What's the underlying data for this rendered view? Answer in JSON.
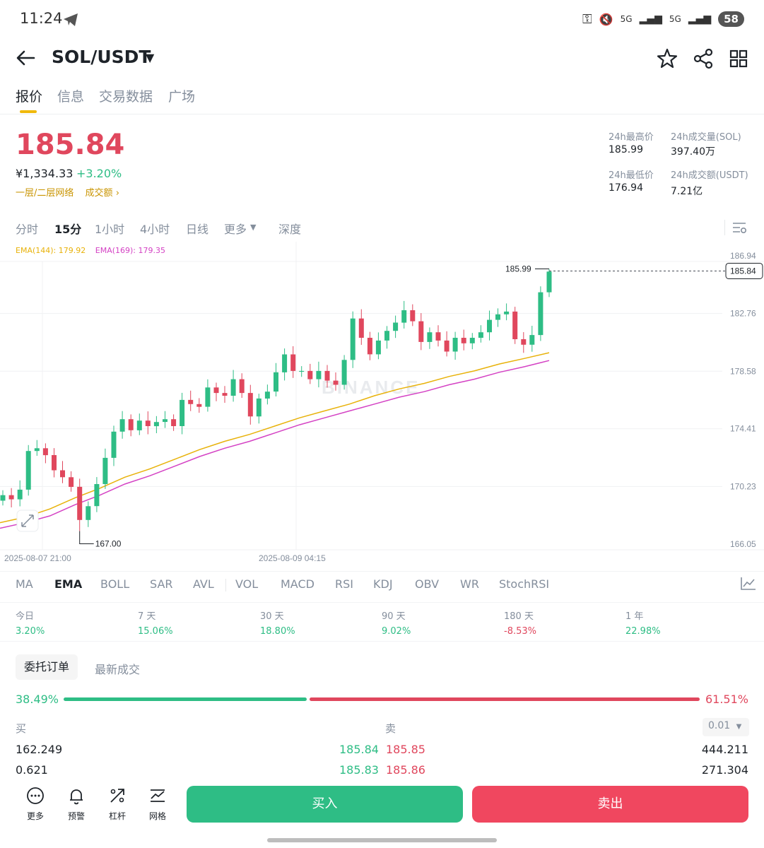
{
  "status": {
    "time": "11:24",
    "network": "5G",
    "battery": "58"
  },
  "header": {
    "pair": "SOL/USDT"
  },
  "tabs": [
    "报价",
    "信息",
    "交易数据",
    "广场"
  ],
  "price": {
    "last": "185.84",
    "cny": "¥1,334.33",
    "change": "+3.20%",
    "tag1": "一层/二层网络",
    "tag2": "成交额"
  },
  "stats": {
    "high_label": "24h最高价",
    "high": "185.99",
    "vol_label": "24h成交量(SOL)",
    "vol": "397.40万",
    "low_label": "24h最低价",
    "low": "176.94",
    "turnover_label": "24h成交额(USDT)",
    "turnover": "7.21亿"
  },
  "intervals": [
    "分时",
    "15分",
    "1小时",
    "4小时",
    "日线",
    "更多",
    "深度"
  ],
  "ema": {
    "ema144": "EMA(144): 179.92",
    "ema169": "EMA(169): 179.35",
    "color144": "#e8b20a",
    "color169": "#d442c4"
  },
  "chart_data": {
    "type": "candlestick",
    "y_ticks": [
      "186.94",
      "182.76",
      "178.58",
      "174.41",
      "170.23",
      "166.05"
    ],
    "x_ticks": [
      "2025-08-07 21:00",
      "2025-08-09 04:15"
    ],
    "current_price": "185.84",
    "max_marker": "185.99",
    "min_marker": "167.00",
    "watermark": "BINANCE",
    "closes": [
      169.6,
      169.3,
      170.0,
      172.8,
      173.0,
      172.5,
      171.4,
      170.9,
      170.2,
      167.8,
      168.8,
      170.4,
      172.3,
      174.2,
      175.1,
      174.3,
      175.0,
      174.6,
      174.9,
      175.1,
      174.6,
      176.5,
      176.2,
      176.0,
      177.4,
      177.0,
      176.8,
      178.0,
      177.0,
      175.3,
      176.6,
      177.1,
      178.5,
      179.8,
      178.6,
      178.6,
      178.0,
      178.6,
      177.9,
      177.6,
      179.4,
      182.4,
      181.0,
      179.8,
      180.8,
      181.5,
      182.1,
      183.0,
      182.2,
      180.7,
      181.4,
      180.8,
      180.0,
      181.0,
      180.6,
      181.0,
      181.4,
      182.3,
      182.7,
      182.9,
      180.9,
      180.5,
      181.2,
      184.3,
      185.8
    ],
    "ema144": [
      167.6,
      168.0,
      168.6,
      169.4,
      170.1,
      170.9,
      171.5,
      172.2,
      172.9,
      173.5,
      174.0,
      174.6,
      175.2,
      175.7,
      176.2,
      176.8,
      177.3,
      177.7,
      178.2,
      178.6,
      179.1,
      179.5,
      179.92
    ],
    "ema169": [
      167.2,
      167.6,
      168.1,
      168.9,
      169.6,
      170.4,
      171.0,
      171.7,
      172.4,
      173.0,
      173.5,
      174.1,
      174.7,
      175.2,
      175.7,
      176.2,
      176.7,
      177.1,
      177.6,
      178.0,
      178.5,
      178.9,
      179.35
    ]
  },
  "indicators": [
    "MA",
    "EMA",
    "BOLL",
    "SAR",
    "AVL",
    "VOL",
    "MACD",
    "RSI",
    "KDJ",
    "OBV",
    "WR",
    "StochRSI"
  ],
  "performance": [
    {
      "label": "今日",
      "value": "3.20%",
      "color": "#2ebd85"
    },
    {
      "label": "7 天",
      "value": "15.06%",
      "color": "#2ebd85"
    },
    {
      "label": "30 天",
      "value": "18.80%",
      "color": "#2ebd85"
    },
    {
      "label": "90 天",
      "value": "9.02%",
      "color": "#2ebd85"
    },
    {
      "label": "180 天",
      "value": "-8.53%",
      "color": "#e0475d"
    },
    {
      "label": "1 年",
      "value": "22.98%",
      "color": "#2ebd85"
    }
  ],
  "orderbook": {
    "tab_active": "委托订单",
    "tab_other": "最新成交",
    "buy_ratio": "38.49%",
    "sell_ratio": "61.51%",
    "buy_ratio_value": 38.49,
    "buy_head": "买",
    "sell_head": "卖",
    "precision": "0.01",
    "rows": [
      {
        "bid_qty": "162.249",
        "bid_price": "185.84",
        "ask_price": "185.85",
        "ask_qty": "444.211"
      },
      {
        "bid_qty": "0.621",
        "bid_price": "185.83",
        "ask_price": "185.86",
        "ask_qty": "271.304"
      }
    ]
  },
  "bottom": {
    "more": "更多",
    "alert": "预警",
    "leverage": "杠杆",
    "grid": "网格",
    "buy": "买入",
    "sell": "卖出"
  },
  "colors": {
    "up": "#2ebd85",
    "down": "#e0475d",
    "accent": "#f0b90b"
  }
}
